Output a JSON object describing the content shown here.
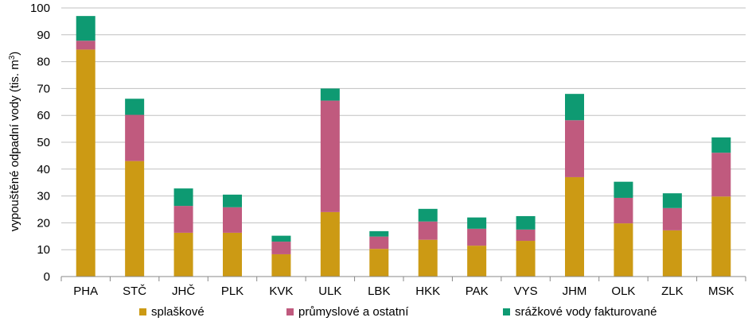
{
  "chart_data": {
    "type": "bar",
    "stacked": true,
    "title": "",
    "xlabel": "",
    "ylabel": "vypouštěné odpadní vody (tis. m",
    "ylabel_sup": "3",
    "ylabel_end": ")",
    "ylim": [
      0,
      100
    ],
    "yticks": [
      0,
      10,
      20,
      30,
      40,
      50,
      60,
      70,
      80,
      90,
      100
    ],
    "grid": true,
    "legend": "bottom",
    "categories": [
      "PHA",
      "STČ",
      "JHČ",
      "PLK",
      "KVK",
      "ULK",
      "LBK",
      "HKK",
      "PAK",
      "VYS",
      "JHM",
      "OLK",
      "ZLK",
      "MSK"
    ],
    "series": [
      {
        "name": "splaškové",
        "color": "#CC9A14",
        "values": [
          84.5,
          43,
          16.3,
          16.3,
          8.3,
          24,
          10.3,
          13.7,
          11.5,
          13.3,
          37,
          19.8,
          17.2,
          29.8
        ]
      },
      {
        "name": "průmyslové a ostatní",
        "color": "#C05A7E",
        "values": [
          3.3,
          17.2,
          10,
          9.5,
          4.7,
          41.5,
          4.6,
          6.8,
          6.3,
          4.2,
          21.2,
          9.5,
          8.3,
          16.3
        ]
      },
      {
        "name": "srážkové vody fakturované",
        "color": "#0E9A72",
        "values": [
          9.2,
          6,
          6.5,
          4.7,
          2.2,
          4.5,
          2,
          4.7,
          4.2,
          5,
          9.8,
          6,
          5.5,
          5.7
        ]
      }
    ]
  }
}
